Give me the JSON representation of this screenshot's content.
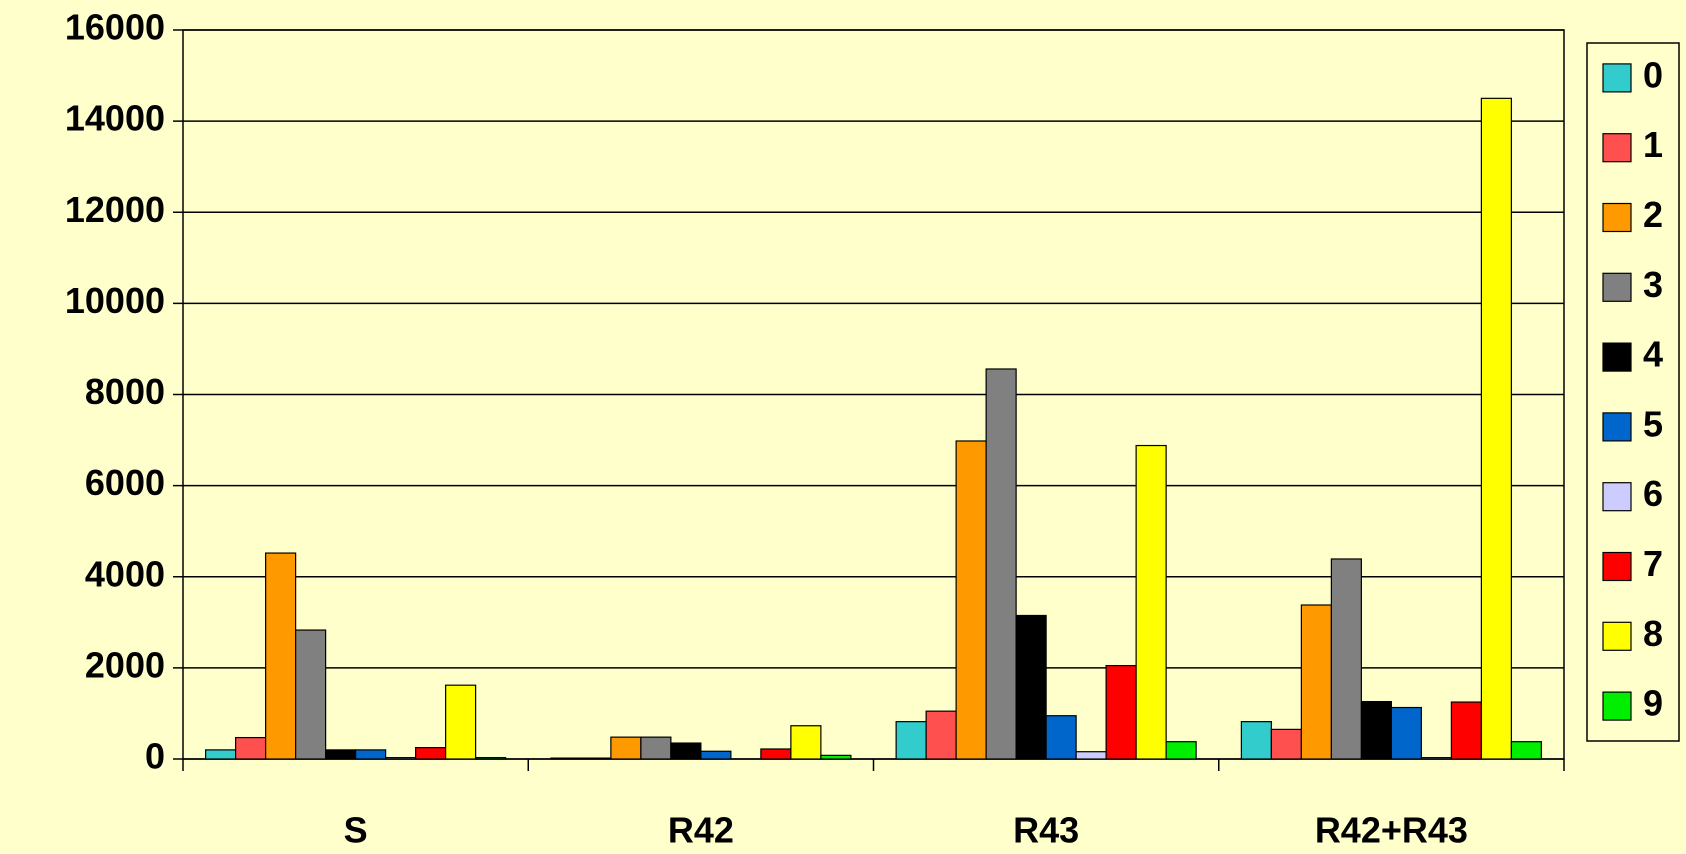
{
  "chart_data": {
    "type": "bar",
    "categories": [
      "S",
      "R42",
      "R43",
      "R42+R43"
    ],
    "series": [
      {
        "name": "0",
        "color": "#33cccc",
        "values": [
          200,
          20,
          820,
          820
        ]
      },
      {
        "name": "1",
        "color": "#ff5050",
        "values": [
          470,
          20,
          1050,
          650
        ]
      },
      {
        "name": "2",
        "color": "#ff9900",
        "values": [
          4520,
          480,
          6980,
          3380
        ]
      },
      {
        "name": "3",
        "color": "#808080",
        "values": [
          2830,
          480,
          8560,
          4390
        ]
      },
      {
        "name": "4",
        "color": "#000000",
        "values": [
          200,
          350,
          3150,
          1260
        ]
      },
      {
        "name": "5",
        "color": "#0066cc",
        "values": [
          200,
          170,
          950,
          1130
        ]
      },
      {
        "name": "6",
        "color": "#ccccff",
        "values": [
          30,
          0,
          160,
          30
        ]
      },
      {
        "name": "7",
        "color": "#ff0000",
        "values": [
          250,
          220,
          2050,
          1250
        ]
      },
      {
        "name": "8",
        "color": "#ffff00",
        "values": [
          1620,
          730,
          6880,
          14500
        ]
      },
      {
        "name": "9",
        "color": "#00ee00",
        "values": [
          30,
          80,
          380,
          380
        ]
      }
    ],
    "ylim": [
      0,
      16000
    ],
    "yticks": [
      0,
      2000,
      4000,
      6000,
      8000,
      10000,
      12000,
      14000,
      16000
    ],
    "grid": true,
    "legend": "right"
  }
}
